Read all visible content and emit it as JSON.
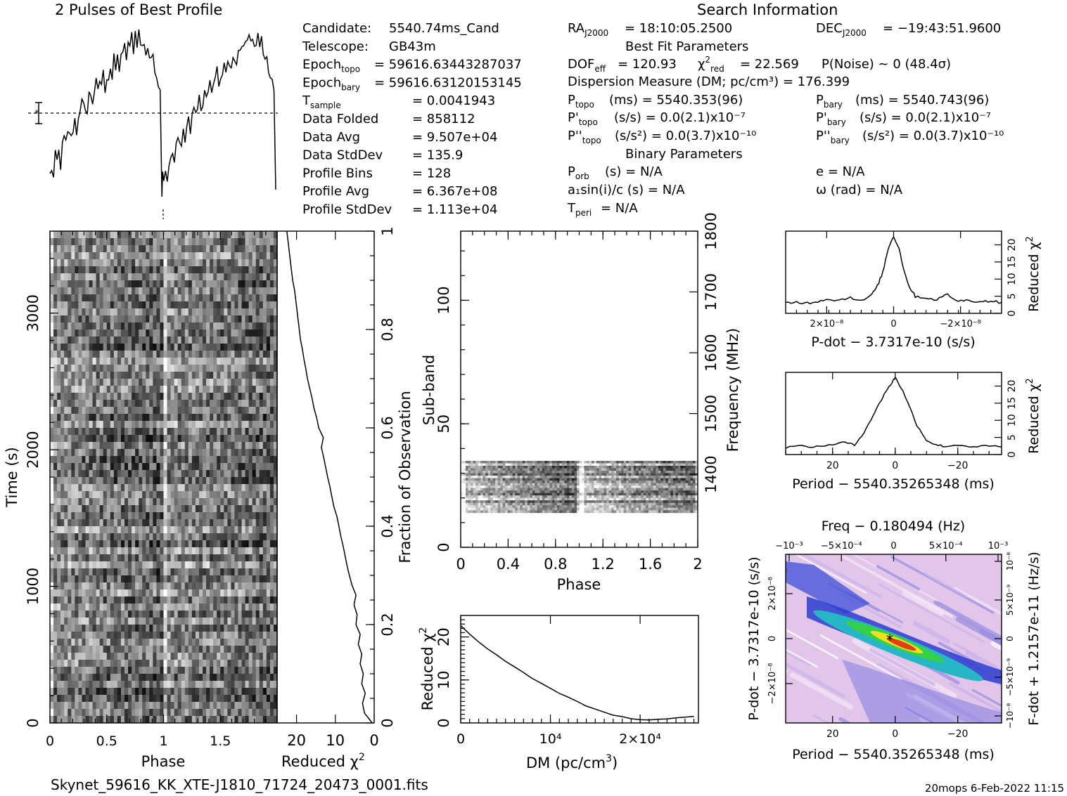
{
  "header": {
    "profile_title": "2 Pulses of Best Profile",
    "search_title": "Search Information",
    "left_params": [
      {
        "label": "Candidate:",
        "value": "5540.74ms_Cand"
      },
      {
        "label": "Telescope:",
        "value": "GB43m"
      },
      {
        "label": "Epoch",
        "sub": "topo",
        "value": "= 59616.63443287037"
      },
      {
        "label": "Epoch",
        "sub": "bary",
        "value": "= 59616.63120153145"
      },
      {
        "label": "T",
        "sub": "sample",
        "value": "=   0.0041943"
      },
      {
        "label": "Data Folded",
        "value": "=   858112"
      },
      {
        "label": "Data Avg",
        "value": "=   9.507e+04"
      },
      {
        "label": "Data StdDev",
        "value": "=   135.9"
      },
      {
        "label": "Profile Bins",
        "value": "=   128"
      },
      {
        "label": "Profile Avg",
        "value": "=   6.367e+08"
      },
      {
        "label": "Profile StdDev",
        "value": "=   1.113e+04"
      }
    ],
    "ra": "= 18:10:05.2500",
    "dec": "= −19:43:51.9600",
    "best_fit_title": "Best Fit Parameters",
    "dof": "= 120.93",
    "chi2red": "= 22.569",
    "pnoise": "P(Noise) ~ 0    (48.4σ)",
    "dm_line": "Dispersion Measure (DM; pc/cm³) = 176.399",
    "p_topo": "(ms) =  5540.353(96)",
    "p_bary": "(ms) =  5540.743(96)",
    "pd_topo": "(s/s) = 0.0(2.1)x10⁻⁷",
    "pd_bary": "(s/s) = 0.0(2.1)x10⁻⁷",
    "pdd_topo": "(s/s²) = 0.0(3.7)x10⁻¹⁰",
    "pdd_bary": "(s/s²) = 0.0(3.7)x10⁻¹⁰",
    "binary_title": "Binary Parameters",
    "porb": "(s) = N/A",
    "a1": "a₁sin(i)/c (s) = N/A",
    "tperi": "= N/A",
    "ecc": "e = N/A",
    "omega": "ω (rad) = N/A"
  },
  "footer": {
    "filename": "Skynet_59616_KK_XTE-J1810_71724_20473_0001.fits",
    "stamp": "20mops   6-Feb-2022 11:15"
  },
  "chart_data": [
    {
      "type": "line",
      "name": "profile",
      "title": "2 Pulses of Best Profile",
      "xlim": [
        0,
        2
      ],
      "shape": "sawtooth ramp rising from phase 0 to phase ~0.98, sharp drop, repeated",
      "values": [
        0.12,
        0.18,
        0.1,
        0.22,
        0.2,
        0.26,
        0.2,
        0.28,
        0.34,
        0.3,
        0.36,
        0.4,
        0.33,
        0.42,
        0.46,
        0.4,
        0.5,
        0.48,
        0.54,
        0.52,
        0.56,
        0.5,
        0.6,
        0.62,
        0.58,
        0.64,
        0.66,
        0.6,
        0.7,
        0.68,
        0.72,
        0.66,
        0.74,
        0.72,
        0.78,
        0.7,
        0.8,
        0.76,
        0.82,
        0.78,
        0.86,
        0.82,
        0.88,
        0.84,
        0.92,
        0.86,
        0.96,
        0.9,
        0.98,
        0.94,
        1.0,
        0.92,
        0.88,
        0.94,
        0.86,
        0.9,
        0.84,
        0.78,
        0.86,
        0.8,
        0.74,
        0.7,
        0.62,
        0.02
      ]
    },
    {
      "type": "heatmap",
      "name": "time-phase",
      "xlabel": "Phase",
      "ylabel": "Time (s)",
      "x_ticks": [
        "0",
        "0.5",
        "1",
        "1.5"
      ],
      "y_ticks": [
        "0",
        "1000",
        "2000",
        "3000"
      ],
      "xlim": [
        0,
        2
      ],
      "ylim": [
        0,
        3600
      ]
    },
    {
      "type": "line",
      "name": "time-chi2",
      "xlabel": "Reduced χ²",
      "ylabel": "Fraction of Observation",
      "x_ticks": [
        "20",
        "10",
        "0"
      ],
      "y_ticks": [
        "0",
        "0.2",
        "0.4",
        "0.6",
        "0.8",
        "1"
      ],
      "xlim": [
        25,
        0
      ],
      "ylim": [
        0,
        1
      ],
      "fraction": [
        0,
        0.02,
        0.04,
        0.06,
        0.08,
        0.1,
        0.12,
        0.14,
        0.16,
        0.18,
        0.2,
        0.22,
        0.24,
        0.26,
        0.28,
        0.3,
        0.32,
        0.34,
        0.36,
        0.38,
        0.4,
        0.42,
        0.44,
        0.46,
        0.48,
        0.5,
        0.52,
        0.54,
        0.56,
        0.58,
        0.6,
        0.62,
        0.64,
        0.66,
        0.68,
        0.7,
        0.72,
        0.74,
        0.76,
        0.78,
        0.8,
        0.82,
        0.84,
        0.86,
        0.88,
        0.9,
        0.92,
        0.94,
        0.96,
        0.98,
        1.0
      ],
      "chi2": [
        0.5,
        2.5,
        3.0,
        2.3,
        3.2,
        2.8,
        3.6,
        3.2,
        4.1,
        3.6,
        4.7,
        4.4,
        5.2,
        4.7,
        5.7,
        6.4,
        7.0,
        7.5,
        8.0,
        8.6,
        9.1,
        9.6,
        10.4,
        10.9,
        11.4,
        12.0,
        12.5,
        13.0,
        13.6,
        13.1,
        14.3,
        14.8,
        15.5,
        16.0,
        16.6,
        17.2,
        17.6,
        18.1,
        18.5,
        19.0,
        19.3,
        19.6,
        19.9,
        20.2,
        20.5,
        21.0,
        21.3,
        21.6,
        21.9,
        22.2,
        22.5
      ]
    },
    {
      "type": "heatmap",
      "name": "subband-phase",
      "xlabel": "Phase",
      "ylabel": "Sub-band",
      "y2label": "Frequency (MHz)",
      "x_ticks": [
        "0",
        "0.4",
        "0.8",
        "1.2",
        "1.6",
        "2"
      ],
      "y_ticks": [
        "0",
        "50",
        "100"
      ],
      "y2_ticks": [
        "1400",
        "1500",
        "1600",
        "1700",
        "1800"
      ],
      "xlim": [
        0,
        2
      ],
      "ylim": [
        0,
        128
      ],
      "filled_subbands": [
        14,
        35
      ]
    },
    {
      "type": "line",
      "name": "dm-chi2",
      "xlabel": "DM (pc/cm³)",
      "ylabel": "Reduced χ²",
      "x_ticks": [
        "0",
        "10⁴",
        "2×10⁴"
      ],
      "y_ticks": [
        "0",
        "10",
        "20"
      ],
      "xlim": [
        0,
        26500
      ],
      "ylim": [
        0,
        25
      ],
      "x": [
        0,
        1000,
        2000,
        3000,
        4000,
        5000,
        6000,
        7000,
        8000,
        9000,
        10000,
        11000,
        12000,
        13000,
        14000,
        15000,
        16000,
        17000,
        18000,
        19000,
        20000,
        21000,
        22000,
        23000,
        24000,
        25000,
        26000
      ],
      "y": [
        22.6,
        20.6,
        18.9,
        17.3,
        15.8,
        14.4,
        13.0,
        11.7,
        10.4,
        9.2,
        8.0,
        6.9,
        5.9,
        4.9,
        4.0,
        3.2,
        2.5,
        1.9,
        1.4,
        1.0,
        0.8,
        0.7,
        0.8,
        0.9,
        1.1,
        1.3,
        1.5
      ]
    },
    {
      "type": "line",
      "name": "pdot-chi2",
      "xlabel": "P-dot − 3.7317e-10 (s/s)",
      "ylabel": "Reduced χ²",
      "x_ticks": [
        "2×10⁻⁸",
        "0",
        "−2×10⁻⁸"
      ],
      "y_ticks": [
        "0",
        "5",
        "10",
        "15",
        "20"
      ],
      "ylim": [
        0,
        24
      ],
      "x": [
        -1.0,
        -0.9,
        -0.8,
        -0.7,
        -0.6,
        -0.5,
        -0.4,
        -0.3,
        -0.2,
        -0.15,
        -0.1,
        -0.05,
        0,
        0.05,
        0.1,
        0.15,
        0.2,
        0.3,
        0.4,
        0.5,
        0.6,
        0.7,
        0.8,
        0.9,
        1.0
      ],
      "y": [
        3.0,
        3.3,
        3.0,
        3.6,
        4.2,
        3.8,
        4.8,
        3.5,
        5.5,
        8.0,
        12.0,
        19.0,
        22.6,
        19.0,
        12.0,
        7.5,
        5.0,
        4.5,
        4.0,
        5.5,
        3.5,
        3.9,
        3.4,
        3.6,
        3.2
      ]
    },
    {
      "type": "line",
      "name": "period-chi2",
      "xlabel": "Period − 5540.35265348 (ms)",
      "ylabel": "Reduced χ²",
      "x_ticks": [
        "20",
        "0",
        "−20"
      ],
      "y_ticks": [
        "0",
        "5",
        "10",
        "15",
        "20"
      ],
      "xlim": [
        35,
        -34
      ],
      "ylim": [
        0,
        24
      ],
      "x": [
        35,
        30,
        25,
        20,
        16,
        13,
        10,
        7,
        5,
        3,
        1,
        0,
        -1,
        -3,
        -5,
        -7,
        -10,
        -13,
        -16,
        -20,
        -25,
        -30,
        -34
      ],
      "y": [
        2.1,
        2.5,
        2.2,
        3.0,
        3.6,
        2.7,
        6.5,
        11.5,
        15.0,
        18.5,
        21.0,
        22.6,
        21.0,
        17.5,
        13.0,
        8.5,
        4.2,
        2.8,
        2.4,
        2.8,
        2.3,
        2.5,
        2.2
      ]
    },
    {
      "type": "heatmap",
      "name": "period-pdot",
      "title": "Freq − 0.180494 (Hz)",
      "xlabel": "Period − 5540.35265348 (ms)",
      "ylabel": "P-dot − 3.7317e-10 (s/s)",
      "y2label": "F-dot + 1.2157e-11 (Hz/s)",
      "x_ticks": [
        "20",
        "0",
        "−20"
      ],
      "top_ticks": [
        "−10⁻³",
        "−5×10⁻⁴",
        "0",
        "5×10⁻⁴",
        "10⁻³"
      ],
      "y_ticks": [
        "2×10⁻⁸",
        "0",
        "−2×10⁻⁸"
      ],
      "y2_ticks": [
        "−10⁻⁸",
        "−5×10⁻⁹",
        "0",
        "5×10⁻⁹",
        "10⁻⁸"
      ],
      "peak": [
        0,
        0
      ]
    }
  ]
}
